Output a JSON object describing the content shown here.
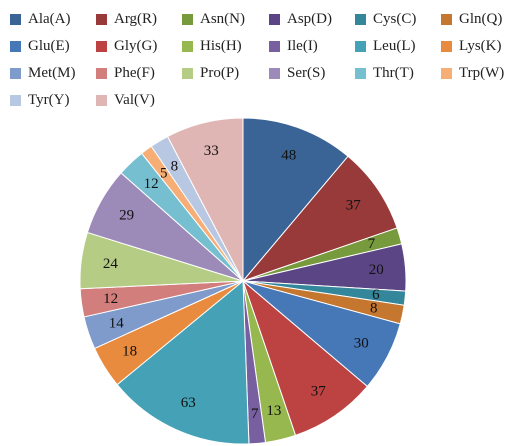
{
  "chart_data": {
    "type": "pie",
    "title": "",
    "legend_position": "top",
    "slices": [
      {
        "name": "Ala(A)",
        "value": 48,
        "color": "#3a6396"
      },
      {
        "name": "Arg(R)",
        "value": 37,
        "color": "#983a3a"
      },
      {
        "name": "Asn(N)",
        "value": 7,
        "color": "#769a3c"
      },
      {
        "name": "Asp(D)",
        "value": 20,
        "color": "#5c4585"
      },
      {
        "name": "Cys(C)",
        "value": 6,
        "color": "#34879a"
      },
      {
        "name": "Gln(Q)",
        "value": 8,
        "color": "#c5762f"
      },
      {
        "name": "Glu(E)",
        "value": 30,
        "color": "#4678b8"
      },
      {
        "name": "Gly(G)",
        "value": 37,
        "color": "#bd4342"
      },
      {
        "name": "His(H)",
        "value": 13,
        "color": "#97b84e"
      },
      {
        "name": "Ile(I)",
        "value": 7,
        "color": "#7860a0"
      },
      {
        "name": "Leu(L)",
        "value": 63,
        "color": "#45a2b6"
      },
      {
        "name": "Lys(K)",
        "value": 18,
        "color": "#e98b3e"
      },
      {
        "name": "Met(M)",
        "value": 14,
        "color": "#7e9bcc"
      },
      {
        "name": "Phe(F)",
        "value": 12,
        "color": "#d27e7d"
      },
      {
        "name": "Pro(P)",
        "value": 24,
        "color": "#b5cc85"
      },
      {
        "name": "Ser(S)",
        "value": 29,
        "color": "#9c8bb8"
      },
      {
        "name": "Thr(T)",
        "value": 12,
        "color": "#76bfd0"
      },
      {
        "name": "Trp(W)",
        "value": 5,
        "color": "#f7ad76"
      },
      {
        "name": "Tyr(Y)",
        "value": 8,
        "color": "#b8c7e2"
      },
      {
        "name": "Val(V)",
        "value": 33,
        "color": "#e0b6b5"
      }
    ]
  }
}
